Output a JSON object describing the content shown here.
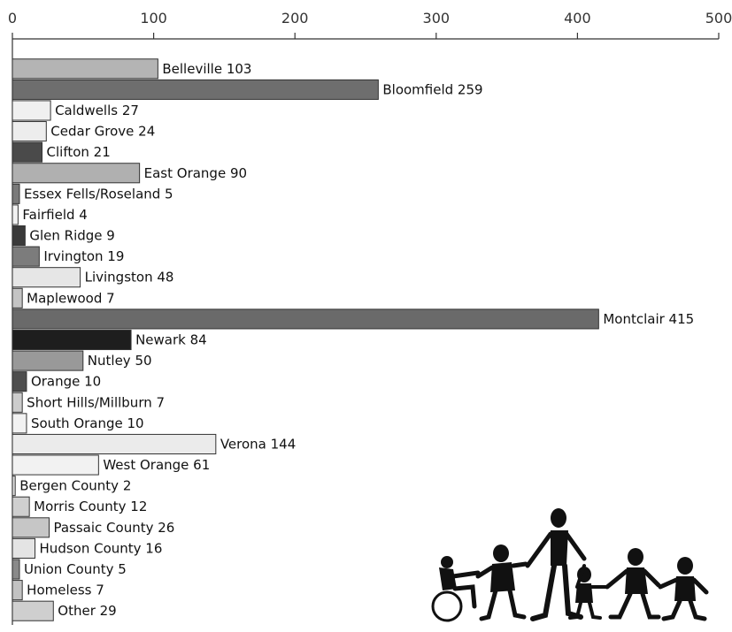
{
  "chart_data": {
    "type": "bar",
    "orientation": "horizontal",
    "x_axis_position": "top",
    "xlim": [
      0,
      500
    ],
    "xticks": [
      "0",
      "100",
      "200",
      "300",
      "400",
      "500"
    ],
    "grid": false,
    "legend": "none",
    "bars": [
      {
        "label": "Belleville 103",
        "category": "Belleville",
        "value": 103,
        "color": "#b4b4b4"
      },
      {
        "label": "Bloomfield 259",
        "category": "Bloomfield",
        "value": 259,
        "color": "#6e6e6e"
      },
      {
        "label": "Caldwells 27",
        "category": "Caldwells",
        "value": 27,
        "color": "#f0f0f0"
      },
      {
        "label": "Cedar Grove 24",
        "category": "Cedar Grove",
        "value": 24,
        "color": "#ededed"
      },
      {
        "label": "Clifton 21",
        "category": "Clifton",
        "value": 21,
        "color": "#4a4a4a"
      },
      {
        "label": "East Orange 90",
        "category": "East Orange",
        "value": 90,
        "color": "#b0b0b0"
      },
      {
        "label": "Essex Fells/Roseland 5",
        "category": "Essex Fells/Roseland",
        "value": 5,
        "color": "#7a7a7a"
      },
      {
        "label": "Fairfield 4",
        "category": "Fairfield",
        "value": 4,
        "color": "#f2f2f2"
      },
      {
        "label": "Glen Ridge 9",
        "category": "Glen Ridge",
        "value": 9,
        "color": "#3a3a3a"
      },
      {
        "label": "Irvington 19",
        "category": "Irvington",
        "value": 19,
        "color": "#7c7c7c"
      },
      {
        "label": "Livingston 48",
        "category": "Livingston",
        "value": 48,
        "color": "#e6e6e6"
      },
      {
        "label": "Maplewood 7",
        "category": "Maplewood",
        "value": 7,
        "color": "#c4c4c4"
      },
      {
        "label": "Montclair 415",
        "category": "Montclair",
        "value": 415,
        "color": "#6a6a6a"
      },
      {
        "label": "Newark 84",
        "category": "Newark",
        "value": 84,
        "color": "#1e1e1e"
      },
      {
        "label": "Nutley 50",
        "category": "Nutley",
        "value": 50,
        "color": "#999999"
      },
      {
        "label": "Orange 10",
        "category": "Orange",
        "value": 10,
        "color": "#4e4e4e"
      },
      {
        "label": "Short Hills/Millburn 7",
        "category": "Short Hills/Millburn",
        "value": 7,
        "color": "#cccccc"
      },
      {
        "label": "South Orange 10",
        "category": "South Orange",
        "value": 10,
        "color": "#f2f2f2"
      },
      {
        "label": "Verona 144",
        "category": "Verona",
        "value": 144,
        "color": "#ebebeb"
      },
      {
        "label": "West Orange 61",
        "category": "West Orange",
        "value": 61,
        "color": "#f2f2f2"
      },
      {
        "label": "Bergen County 2",
        "category": "Bergen County",
        "value": 2,
        "color": "#dddddd"
      },
      {
        "label": "Morris County 12",
        "category": "Morris County",
        "value": 12,
        "color": "#cfcfcf"
      },
      {
        "label": "Passaic County 26",
        "category": "Passaic County",
        "value": 26,
        "color": "#c6c6c6"
      },
      {
        "label": "Hudson County 16",
        "category": "Hudson County",
        "value": 16,
        "color": "#e4e4e4"
      },
      {
        "label": "Union County 5",
        "category": "Union County",
        "value": 5,
        "color": "#8a8a8a"
      },
      {
        "label": "Homeless 7",
        "category": "Homeless",
        "value": 7,
        "color": "#c2c2c2"
      },
      {
        "label": "Other 29",
        "category": "Other",
        "value": 29,
        "color": "#cfcfcf"
      }
    ]
  },
  "decoration": {
    "icon": "family-silhouette-icon"
  }
}
